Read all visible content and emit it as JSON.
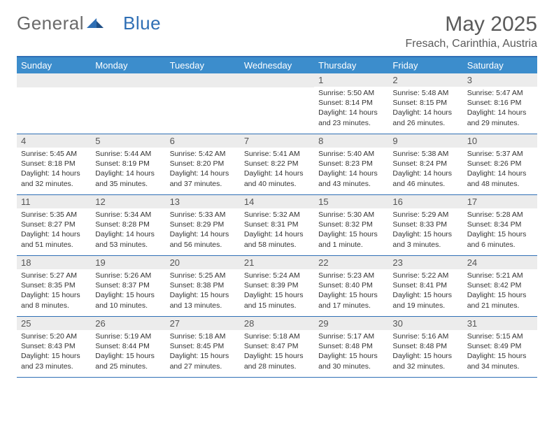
{
  "brand": {
    "part1": "General",
    "part2": "Blue"
  },
  "title": "May 2025",
  "location": "Fresach, Carinthia, Austria",
  "colors": {
    "header_bg": "#3c8dcc",
    "border": "#2f6fb5",
    "daynum_bg": "#ececec",
    "text": "#333333",
    "muted": "#5a5a5a"
  },
  "weekdays": [
    "Sunday",
    "Monday",
    "Tuesday",
    "Wednesday",
    "Thursday",
    "Friday",
    "Saturday"
  ],
  "weeks": [
    [
      null,
      null,
      null,
      null,
      {
        "n": "1",
        "sunrise": "5:50 AM",
        "sunset": "8:14 PM",
        "daylight": "14 hours and 23 minutes."
      },
      {
        "n": "2",
        "sunrise": "5:48 AM",
        "sunset": "8:15 PM",
        "daylight": "14 hours and 26 minutes."
      },
      {
        "n": "3",
        "sunrise": "5:47 AM",
        "sunset": "8:16 PM",
        "daylight": "14 hours and 29 minutes."
      }
    ],
    [
      {
        "n": "4",
        "sunrise": "5:45 AM",
        "sunset": "8:18 PM",
        "daylight": "14 hours and 32 minutes."
      },
      {
        "n": "5",
        "sunrise": "5:44 AM",
        "sunset": "8:19 PM",
        "daylight": "14 hours and 35 minutes."
      },
      {
        "n": "6",
        "sunrise": "5:42 AM",
        "sunset": "8:20 PM",
        "daylight": "14 hours and 37 minutes."
      },
      {
        "n": "7",
        "sunrise": "5:41 AM",
        "sunset": "8:22 PM",
        "daylight": "14 hours and 40 minutes."
      },
      {
        "n": "8",
        "sunrise": "5:40 AM",
        "sunset": "8:23 PM",
        "daylight": "14 hours and 43 minutes."
      },
      {
        "n": "9",
        "sunrise": "5:38 AM",
        "sunset": "8:24 PM",
        "daylight": "14 hours and 46 minutes."
      },
      {
        "n": "10",
        "sunrise": "5:37 AM",
        "sunset": "8:26 PM",
        "daylight": "14 hours and 48 minutes."
      }
    ],
    [
      {
        "n": "11",
        "sunrise": "5:35 AM",
        "sunset": "8:27 PM",
        "daylight": "14 hours and 51 minutes."
      },
      {
        "n": "12",
        "sunrise": "5:34 AM",
        "sunset": "8:28 PM",
        "daylight": "14 hours and 53 minutes."
      },
      {
        "n": "13",
        "sunrise": "5:33 AM",
        "sunset": "8:29 PM",
        "daylight": "14 hours and 56 minutes."
      },
      {
        "n": "14",
        "sunrise": "5:32 AM",
        "sunset": "8:31 PM",
        "daylight": "14 hours and 58 minutes."
      },
      {
        "n": "15",
        "sunrise": "5:30 AM",
        "sunset": "8:32 PM",
        "daylight": "15 hours and 1 minute."
      },
      {
        "n": "16",
        "sunrise": "5:29 AM",
        "sunset": "8:33 PM",
        "daylight": "15 hours and 3 minutes."
      },
      {
        "n": "17",
        "sunrise": "5:28 AM",
        "sunset": "8:34 PM",
        "daylight": "15 hours and 6 minutes."
      }
    ],
    [
      {
        "n": "18",
        "sunrise": "5:27 AM",
        "sunset": "8:35 PM",
        "daylight": "15 hours and 8 minutes."
      },
      {
        "n": "19",
        "sunrise": "5:26 AM",
        "sunset": "8:37 PM",
        "daylight": "15 hours and 10 minutes."
      },
      {
        "n": "20",
        "sunrise": "5:25 AM",
        "sunset": "8:38 PM",
        "daylight": "15 hours and 13 minutes."
      },
      {
        "n": "21",
        "sunrise": "5:24 AM",
        "sunset": "8:39 PM",
        "daylight": "15 hours and 15 minutes."
      },
      {
        "n": "22",
        "sunrise": "5:23 AM",
        "sunset": "8:40 PM",
        "daylight": "15 hours and 17 minutes."
      },
      {
        "n": "23",
        "sunrise": "5:22 AM",
        "sunset": "8:41 PM",
        "daylight": "15 hours and 19 minutes."
      },
      {
        "n": "24",
        "sunrise": "5:21 AM",
        "sunset": "8:42 PM",
        "daylight": "15 hours and 21 minutes."
      }
    ],
    [
      {
        "n": "25",
        "sunrise": "5:20 AM",
        "sunset": "8:43 PM",
        "daylight": "15 hours and 23 minutes."
      },
      {
        "n": "26",
        "sunrise": "5:19 AM",
        "sunset": "8:44 PM",
        "daylight": "15 hours and 25 minutes."
      },
      {
        "n": "27",
        "sunrise": "5:18 AM",
        "sunset": "8:45 PM",
        "daylight": "15 hours and 27 minutes."
      },
      {
        "n": "28",
        "sunrise": "5:18 AM",
        "sunset": "8:47 PM",
        "daylight": "15 hours and 28 minutes."
      },
      {
        "n": "29",
        "sunrise": "5:17 AM",
        "sunset": "8:48 PM",
        "daylight": "15 hours and 30 minutes."
      },
      {
        "n": "30",
        "sunrise": "5:16 AM",
        "sunset": "8:48 PM",
        "daylight": "15 hours and 32 minutes."
      },
      {
        "n": "31",
        "sunrise": "5:15 AM",
        "sunset": "8:49 PM",
        "daylight": "15 hours and 34 minutes."
      }
    ]
  ],
  "labels": {
    "sunrise": "Sunrise:",
    "sunset": "Sunset:",
    "daylight": "Daylight:"
  }
}
